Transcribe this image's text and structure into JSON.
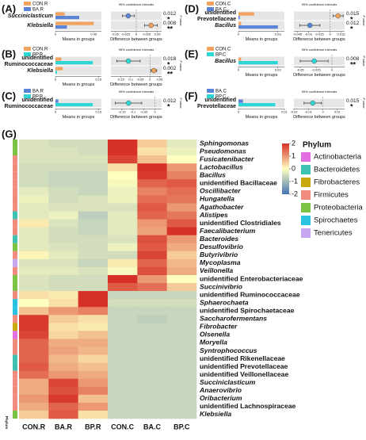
{
  "chart_data": [
    {
      "type": "errorbar_ext",
      "label": "(A)",
      "categories": [
        "Succiniclasticum",
        "Klebsiella"
      ],
      "italic": [
        true,
        true
      ],
      "series": [
        {
          "name": "CON.R",
          "color": "#f0a35e",
          "values": [
            0.012,
            0.05
          ]
        },
        {
          "name": "BA.R",
          "color": "#5b84d6",
          "values": [
            0.031,
            0.015
          ]
        }
      ],
      "difference": [
        -0.019,
        0.035
      ],
      "ci_low": [
        -0.033,
        0.02
      ],
      "ci_high": [
        -0.005,
        0.05
      ],
      "p_values": [
        0.012,
        0.008
      ],
      "significance": [
        "*",
        "**"
      ],
      "xlim": [
        0,
        0.06
      ],
      "xticks": [
        0,
        0.05
      ],
      "diff_xlim": [
        -0.06,
        0.06
      ],
      "diff_xticks": [
        -0.05,
        -0.025,
        0,
        0.025,
        0.05
      ],
      "means_xlabel": "Means in groups",
      "diff_xlabel": "Difference between groups",
      "ci_title": "95% confidence intervals",
      "p_label": "P value"
    },
    {
      "type": "errorbar_ext",
      "label": "(B)",
      "categories": [
        "unidentified Ruminococcaceae",
        "Klebsiella"
      ],
      "italic": [
        false,
        true
      ],
      "series": [
        {
          "name": "CON.R",
          "color": "#f0a35e",
          "values": [
            0.02,
            0.025
          ]
        },
        {
          "name": "BP.R",
          "color": "#2ed6d6",
          "values": [
            0.13,
            0.005
          ]
        }
      ],
      "difference": [
        -0.11,
        0.02
      ],
      "ci_low": [
        -0.17,
        0.005
      ],
      "ci_high": [
        -0.05,
        0.035
      ],
      "p_values": [
        0.018,
        0.002
      ],
      "significance": [
        "*",
        "**"
      ],
      "xlim": [
        0,
        0.16
      ],
      "xticks": [
        0,
        0.15
      ],
      "diff_xlim": [
        -0.2,
        0.06
      ],
      "diff_xticks": [
        -0.15,
        -0.1,
        -0.05,
        0,
        0.05
      ],
      "means_xlabel": "Means in groups",
      "diff_xlabel": "Difference between groups",
      "ci_title": "95% confidence intervals",
      "p_label": "P value"
    },
    {
      "type": "errorbar_ext",
      "label": "(C)",
      "categories": [
        "unidentified Ruminococcaceae"
      ],
      "italic": [
        false
      ],
      "series": [
        {
          "name": "BA.R",
          "color": "#5b84d6",
          "values": [
            0.01
          ]
        },
        {
          "name": "BP.R",
          "color": "#2ed6d6",
          "values": [
            0.13
          ]
        }
      ],
      "difference": [
        -0.12
      ],
      "ci_low": [
        -0.18
      ],
      "ci_high": [
        -0.06
      ],
      "p_values": [
        0.012
      ],
      "significance": [
        "*"
      ],
      "xlim": [
        0,
        0.16
      ],
      "xticks": [
        0,
        0.15
      ],
      "diff_xlim": [
        -0.2,
        0.03
      ],
      "diff_xticks": [
        -0.15,
        -0.1,
        -0.05,
        0
      ],
      "means_xlabel": "Means in groups",
      "diff_xlabel": "Difference between groups",
      "ci_title": "95% confidence intervals",
      "p_label": "P value"
    },
    {
      "type": "errorbar_ext",
      "label": "(D)",
      "categories": [
        "unidentified Prevotellaceae",
        "Bacillus"
      ],
      "italic": [
        false,
        true
      ],
      "series": [
        {
          "name": "CON.C",
          "color": "#f0a35e",
          "values": [
            0.012,
            0.002
          ]
        },
        {
          "name": "BA.C",
          "color": "#5b84d6",
          "values": [
            0.001,
            0.03
          ]
        }
      ],
      "difference": [
        0.011,
        -0.028
      ],
      "ci_low": [
        0.004,
        -0.042
      ],
      "ci_high": [
        0.018,
        -0.014
      ],
      "p_values": [
        0.015,
        0.012
      ],
      "significance": [
        "*",
        "*"
      ],
      "xlim": [
        0,
        0.035
      ],
      "xticks": [
        0,
        0.03
      ],
      "diff_xlim": [
        -0.05,
        0.02
      ],
      "diff_xticks": [
        -0.045,
        -0.03,
        -0.015,
        0,
        0.015
      ],
      "means_xlabel": "Means in groups",
      "diff_xlabel": "Difference between groups",
      "ci_title": "95% confidence intervals",
      "p_label": "P value"
    },
    {
      "type": "errorbar_ext",
      "label": "(E)",
      "categories": [
        "Bacillus"
      ],
      "italic": [
        true
      ],
      "series": [
        {
          "name": "CON.C",
          "color": "#f0a35e",
          "values": [
            0.002
          ]
        },
        {
          "name": "BP.C",
          "color": "#2ed6d6",
          "values": [
            0.03
          ]
        }
      ],
      "difference": [
        -0.028
      ],
      "ci_low": [
        -0.05
      ],
      "ci_high": [
        -0.006
      ],
      "p_values": [
        0.008
      ],
      "significance": [
        "**"
      ],
      "xlim": [
        0,
        0.035
      ],
      "xticks": [
        0,
        0.03
      ],
      "diff_xlim": [
        -0.06,
        0.02
      ],
      "diff_xticks": [
        -0.05,
        -0.025,
        0
      ],
      "means_xlabel": "Means in groups",
      "diff_xlabel": "Difference between groups",
      "ci_title": "95% confidence intervals",
      "p_label": "P value"
    },
    {
      "type": "errorbar_ext",
      "label": "(F)",
      "categories": [
        "unidentified Prevotellaceae"
      ],
      "italic": [
        false
      ],
      "series": [
        {
          "name": "BA.C",
          "color": "#5b84d6",
          "values": [
            0.001
          ]
        },
        {
          "name": "BP.C",
          "color": "#2ed6d6",
          "values": [
            0.008
          ]
        }
      ],
      "difference": [
        -0.007
      ],
      "ci_low": [
        -0.013
      ],
      "ci_high": [
        -0.001
      ],
      "p_values": [
        0.015
      ],
      "significance": [
        "*"
      ],
      "xlim": [
        0,
        0.01
      ],
      "xticks": [
        0,
        0.01
      ],
      "diff_xlim": [
        -0.02,
        0.015
      ],
      "diff_xticks": [
        -0.02,
        -0.01,
        0,
        0.01
      ],
      "means_xlabel": "Means in groups",
      "diff_xlabel": "Difference between groups",
      "ci_title": "95% confidence intervals",
      "p_label": "P value"
    },
    {
      "type": "heatmap",
      "label": "(G)",
      "columns": [
        "CON.R",
        "BA.R",
        "BP.R",
        "CON.C",
        "BA.C",
        "BP.C"
      ],
      "rows": [
        "Sphingomonas",
        "Pseudomonas",
        "Fusicatenibacter",
        "Lactobacillus",
        "Bacillus",
        "unidentified Bacillaceae",
        "Oscillibacter",
        "Hungatella",
        "Agathobacter",
        "Alistipes",
        "unidentified Clostridiales",
        "Faecalibacterium",
        "Bacteroides",
        "Desulfovibrio",
        "Butyrivibrio",
        "Mycoplasma",
        "Veillonella",
        "unidentified Enterobacteriaceae",
        "Succinivibrio",
        "unidentified Ruminococcaceae",
        "Sphaerochaeta",
        "unidentified Spirochaetaceae",
        "Saccharofermentans",
        "Fibrobacter",
        "Olsenella",
        "Moryella",
        "Syntrophococcus",
        "unidentified Rikenellaceae",
        "unidentified Prevotellaceae",
        "unidentified Veillonellaceae",
        "Succiniclasticum",
        "Anaerovibrio",
        "Oribacterium",
        "unidentified Lachnospiraceae",
        "Klebsiella"
      ],
      "row_italic": [
        true,
        true,
        true,
        true,
        true,
        false,
        true,
        true,
        true,
        true,
        false,
        true,
        true,
        true,
        true,
        true,
        true,
        false,
        true,
        false,
        true,
        false,
        true,
        true,
        true,
        true,
        true,
        false,
        false,
        false,
        true,
        true,
        true,
        false,
        true
      ],
      "row_phylum": [
        "Proteobacteria",
        "Proteobacteria",
        "Firmicutes",
        "Firmicutes",
        "Firmicutes",
        "Firmicutes",
        "Firmicutes",
        "Firmicutes",
        "Firmicutes",
        "Bacteroidetes",
        "Firmicutes",
        "Firmicutes",
        "Bacteroidetes",
        "Proteobacteria",
        "Firmicutes",
        "Tenericutes",
        "Firmicutes",
        "Proteobacteria",
        "Proteobacteria",
        "Firmicutes",
        "Spirochaetes",
        "Spirochaetes",
        "Firmicutes",
        "Fibrobacteres",
        "Actinobacteria",
        "Firmicutes",
        "Firmicutes",
        "Bacteroidetes",
        "Bacteroidetes",
        "Firmicutes",
        "Firmicutes",
        "Firmicutes",
        "Firmicutes",
        "Firmicutes",
        "Proteobacteria"
      ],
      "values": [
        [
          -0.4,
          -0.5,
          -0.5,
          2,
          0.5,
          -0.3
        ],
        [
          -0.4,
          -0.4,
          -0.5,
          2,
          0.3,
          -0.2
        ],
        [
          -0.4,
          -0.4,
          -0.4,
          1.8,
          0.6,
          0
        ],
        [
          -0.5,
          -0.5,
          -0.5,
          0.3,
          2,
          1
        ],
        [
          -0.5,
          -0.6,
          -0.6,
          0,
          1.9,
          1.2
        ],
        [
          -0.5,
          -0.6,
          -0.6,
          -0.1,
          1.5,
          1.6
        ],
        [
          -0.3,
          -0.5,
          -0.6,
          -0.2,
          1.2,
          1.4
        ],
        [
          -0.2,
          -0.5,
          -0.4,
          -0.2,
          1.4,
          1.3
        ],
        [
          -0.3,
          -0.4,
          -0.4,
          -0.4,
          1.6,
          1
        ],
        [
          -0.3,
          -0.2,
          -0.7,
          -0.3,
          1.5,
          1.3
        ],
        [
          0.2,
          -0.4,
          -0.6,
          -0.3,
          1,
          1.6
        ],
        [
          -0.3,
          -0.5,
          -0.6,
          -0.3,
          0.9,
          2
        ],
        [
          -0.3,
          -0.5,
          -0.5,
          -0.4,
          1.7,
          1
        ],
        [
          -0.3,
          -0.4,
          -0.5,
          -0.2,
          1.6,
          0.8
        ],
        [
          0.1,
          -0.3,
          -0.5,
          -0.5,
          1.8,
          0.5
        ],
        [
          -0.4,
          -0.4,
          -0.6,
          0.2,
          1.5,
          0.7
        ],
        [
          -0.3,
          -0.3,
          -0.4,
          -0.1,
          1.7,
          0.8
        ],
        [
          -0.4,
          -0.5,
          -0.5,
          2,
          1,
          0
        ],
        [
          -0.4,
          -0.5,
          -0.5,
          1.6,
          1.4,
          0.5
        ],
        [
          0.3,
          0.2,
          2,
          -0.6,
          -0.6,
          -0.6
        ],
        [
          0,
          0.3,
          2,
          -0.5,
          -0.5,
          -0.5
        ],
        [
          0.6,
          1,
          1.2,
          -0.6,
          -0.6,
          -0.6
        ],
        [
          1.9,
          0.5,
          0.3,
          -0.6,
          -0.7,
          -0.6
        ],
        [
          1.9,
          0.3,
          0.2,
          -0.6,
          -0.6,
          -0.6
        ],
        [
          1.8,
          0.4,
          0.6,
          -0.6,
          -0.6,
          -0.6
        ],
        [
          1.5,
          0.8,
          0.8,
          -0.6,
          -0.6,
          -0.6
        ],
        [
          1.5,
          0.9,
          0.7,
          -0.6,
          -0.6,
          -0.6
        ],
        [
          1.5,
          0.7,
          0.4,
          -0.6,
          -0.6,
          -0.6
        ],
        [
          1.6,
          0.8,
          0.6,
          -0.6,
          -0.6,
          -0.6
        ],
        [
          1.4,
          1,
          0.8,
          -0.6,
          -0.6,
          -0.6
        ],
        [
          0.8,
          1.8,
          1,
          -0.6,
          -0.6,
          -0.6
        ],
        [
          0.8,
          1.7,
          1.2,
          -0.6,
          -0.6,
          -0.6
        ],
        [
          1,
          1.9,
          0.6,
          -0.6,
          -0.6,
          -0.6
        ],
        [
          0.8,
          1.5,
          1,
          -0.6,
          -0.6,
          -0.6
        ],
        [
          0.5,
          1.6,
          0.3,
          -0.6,
          -0.6,
          -0.6
        ]
      ],
      "zlim": [
        -2,
        2
      ],
      "colorscale": [
        "#4575b4",
        "#ffffbf",
        "#d73027"
      ],
      "colorbar_ticks": [
        2,
        1,
        0,
        -1,
        -2
      ],
      "legend_title": "Phylum",
      "strip_label": "Phylum",
      "phyla": [
        {
          "name": "Actinobacteria",
          "color": "#e36ee0"
        },
        {
          "name": "Bacteroidetes",
          "color": "#3ec1b0"
        },
        {
          "name": "Fibrobacteres",
          "color": "#c8a80b"
        },
        {
          "name": "Firmicutes",
          "color": "#f08b7e"
        },
        {
          "name": "Proteobacteria",
          "color": "#7dc343"
        },
        {
          "name": "Spirochaetes",
          "color": "#29c2e0"
        },
        {
          "name": "Tenericutes",
          "color": "#c7a6f0"
        }
      ]
    }
  ]
}
